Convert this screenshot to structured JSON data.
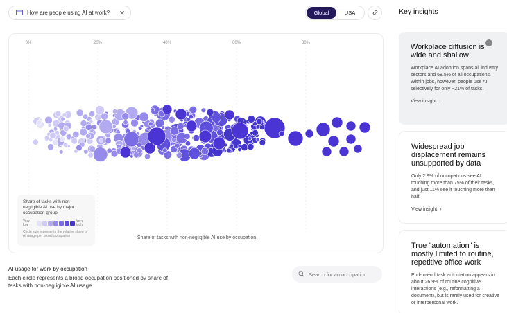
{
  "top_bar": {
    "topic_icon": "folder-icon",
    "topic_label": "How are people using AI at work?",
    "scope_options": [
      "Global",
      "USA"
    ],
    "scope_selected": "Global",
    "link_icon": "link-icon"
  },
  "chart": {
    "x_tick_labels": [
      "0%",
      "20%",
      "40%",
      "60%",
      "80%"
    ],
    "x_axis_caption": "Share of tasks with non-negligible AI use by occupation",
    "legend": {
      "title": "Share of tasks with non-negligible AI use by major occupation group",
      "low_label": "Very low",
      "high_label": "Very high",
      "note": "Circle size represents the relative share of AI usage per broad occupation",
      "swatch_colors": [
        "#e4e2fa",
        "#cfcaf6",
        "#b3abf1",
        "#968bea",
        "#7a6de4",
        "#5e4fdc",
        "#4535cf"
      ]
    }
  },
  "chart_data": {
    "type": "scatter",
    "xlabel": "Share of tasks with non-negligible AI use by occupation",
    "xlim": [
      0,
      100
    ],
    "x_ticks": [
      "0%",
      "20%",
      "40%",
      "60%",
      "80%"
    ],
    "points": [
      {
        "x": 16,
        "y": 38,
        "size": 11,
        "shade": 6
      },
      {
        "x": 22,
        "y": 34,
        "size": 9,
        "shade": 6
      },
      {
        "x": 26,
        "y": 44,
        "size": 14,
        "shade": 6
      },
      {
        "x": 28,
        "y": 50,
        "size": 8,
        "shade": 6
      },
      {
        "x": 30,
        "y": 36,
        "size": 10,
        "shade": 6
      },
      {
        "x": 31,
        "y": 56,
        "size": 9,
        "shade": 6
      },
      {
        "x": 34,
        "y": 30,
        "size": 9,
        "shade": 6
      },
      {
        "x": 36,
        "y": 60,
        "size": 10,
        "shade": 6
      },
      {
        "x": 38,
        "y": 44,
        "size": 11,
        "shade": 6
      },
      {
        "x": 41,
        "y": 34,
        "size": 10,
        "shade": 6
      },
      {
        "x": 43,
        "y": 52,
        "size": 13,
        "shade": 6
      },
      {
        "x": 46,
        "y": 40,
        "size": 8,
        "shade": 6
      },
      {
        "x": 48,
        "y": 58,
        "size": 9,
        "shade": 6
      },
      {
        "x": 50,
        "y": 46,
        "size": 11,
        "shade": 6
      },
      {
        "x": 53,
        "y": 36,
        "size": 13,
        "shade": 6
      },
      {
        "x": 55,
        "y": 54,
        "size": 9,
        "shade": 6
      },
      {
        "x": 57,
        "y": 32,
        "size": 8,
        "shade": 6
      },
      {
        "x": 60,
        "y": 44,
        "size": 15,
        "shade": 6
      },
      {
        "x": 62,
        "y": 58,
        "size": 8,
        "shade": 6
      },
      {
        "x": 64,
        "y": 38,
        "size": 9,
        "shade": 6
      },
      {
        "x": 67,
        "y": 46,
        "size": 11,
        "shade": 6
      },
      {
        "x": 70,
        "y": 52,
        "size": 12,
        "shade": 6
      },
      {
        "x": 72,
        "y": 40,
        "size": 10,
        "shade": 6
      },
      {
        "x": 74,
        "y": 54,
        "size": 9,
        "shade": 6
      },
      {
        "x": 78,
        "y": 42,
        "size": 10,
        "shade": 6
      }
    ]
  },
  "footer": {
    "title": "AI usage for work by occupation",
    "description": "Each circle represents a broad occupation positioned by share of tasks with non-negligible AI usage.",
    "search_icon": "search-icon",
    "search_placeholder": "Search for an occupation"
  },
  "insights": {
    "heading": "Key insights",
    "link_label": "View insight",
    "cards": [
      {
        "title": "Workplace diffusion is wide and shallow",
        "body": "Workplace AI adoption spans all industry sectors and 68.5% of all occupations. Within jobs, however, people use AI selectively for only ~21% of tasks."
      },
      {
        "title": "Widespread job displacement remains unsupported by data",
        "body": "Only 2.9% of occupations see AI touching more than 75% of their tasks, and just 11% see it touching more than half."
      },
      {
        "title": "True \"automation\" is mostly limited to routine, repetitive office work",
        "body": "End-to-end task automation appears in about 26.9% of routine cognitive interactions (e.g., reformatting a document), but is rarely used for creative or interpersonal work."
      }
    ]
  }
}
